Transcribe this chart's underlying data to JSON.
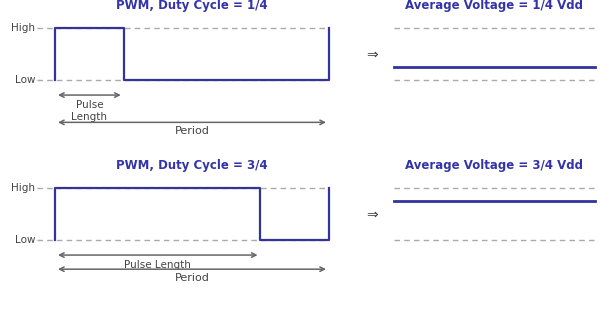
{
  "bg_color": "#ffffff",
  "pwm_color": "#333399",
  "dashed_color": "#aaaaaa",
  "arrow_color": "#666666",
  "text_color": "#444444",
  "title_color": "#3333aa",
  "high_label": "High",
  "low_label": "Low",
  "title1": "PWM, Duty Cycle = 1/4",
  "title2": "PWM, Duty Cycle = 3/4",
  "avg_title1": "Average Voltage = 1/4 Vdd",
  "avg_title2": "Average Voltage = 3/4 Vdd",
  "pulse_length_label": "Pulse\nLength",
  "pulse_length_label2": "Pulse Length",
  "period_label": "Period",
  "arrow_symbol": "⇒",
  "duty1": 0.25,
  "duty2": 0.75
}
